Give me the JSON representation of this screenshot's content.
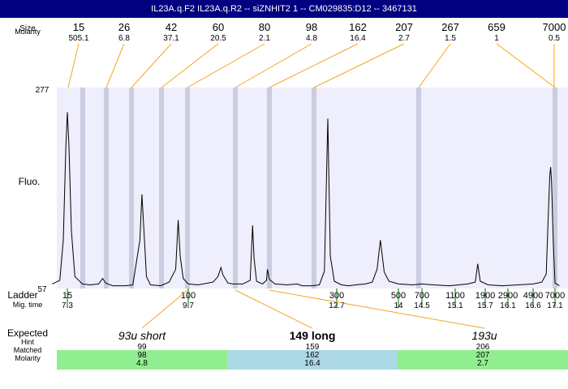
{
  "window": {
    "title": "IL23A.q.F2  IL23A.q.R2 -- siZNHIT2 1 -- CM029835:D12 -- 3467131"
  },
  "labels": {
    "size": "Size",
    "molarity": "Molarity",
    "fluo": "Fluo.",
    "ladder": "Ladder",
    "mig_time": "Mig. time",
    "expected": "Expected",
    "hint": "Hint",
    "matched": "Matched",
    "molarity_bottom": "Molarity"
  },
  "colors": {
    "title_bg": "#000080",
    "plot_bg": "#eeeefc",
    "band": "#cccce0",
    "orange": "#f5a623",
    "green": "#006400",
    "matched_green": "#90ee90",
    "matched_blue": "#add8e6"
  },
  "chart_data": {
    "type": "line",
    "title": "IL23A.q.F2  IL23A.q.R2 -- siZNHIT2 1 -- CM029835:D12 -- 3467131",
    "ylabel": "Fluo.",
    "ylim": [
      57,
      277
    ],
    "y_ticks": [
      "277",
      "57"
    ],
    "top_peaks": [
      {
        "size": "15",
        "molarity": "505.1",
        "mig_time": 7.3
      },
      {
        "size": "26",
        "molarity": "6.8",
        "mig_time": 8.0
      },
      {
        "size": "42",
        "molarity": "37.1",
        "mig_time": 8.9
      },
      {
        "size": "60",
        "molarity": "20.5",
        "mig_time": 9.2
      },
      {
        "size": "80",
        "molarity": "2.1",
        "mig_time": 9.7
      },
      {
        "size": "98",
        "molarity": "4.8",
        "mig_time": 10.0
      },
      {
        "size": "162",
        "molarity": "16.4",
        "mig_time": 11.3
      },
      {
        "size": "207",
        "molarity": "2.7",
        "mig_time": 11.9
      },
      {
        "size": "267",
        "molarity": "1.5",
        "mig_time": 12.8
      },
      {
        "size": "659",
        "molarity": "1",
        "mig_time": 14.5
      },
      {
        "size": "7000",
        "molarity": "0.5",
        "mig_time": 17.1
      }
    ],
    "ladder": [
      {
        "size": "15",
        "mig_time": "7.3"
      },
      {
        "size": "100",
        "mig_time": "9.7"
      },
      {
        "size": "300",
        "mig_time": "12.7"
      },
      {
        "size": "500",
        "mig_time": "14"
      },
      {
        "size": "700",
        "mig_time": "14.5"
      },
      {
        "size": "1100",
        "mig_time": "15.1"
      },
      {
        "size": "1900",
        "mig_time": "15.7"
      },
      {
        "size": "2900",
        "mig_time": "16.1"
      },
      {
        "size": "4900",
        "mig_time": "16.6"
      },
      {
        "size": "7000",
        "mig_time": "17.1"
      }
    ],
    "trace": [
      [
        7.0,
        62
      ],
      [
        7.15,
        66
      ],
      [
        7.22,
        110
      ],
      [
        7.27,
        210
      ],
      [
        7.3,
        250
      ],
      [
        7.33,
        215
      ],
      [
        7.38,
        120
      ],
      [
        7.45,
        70
      ],
      [
        7.6,
        62
      ],
      [
        7.75,
        61
      ],
      [
        7.92,
        62
      ],
      [
        8.0,
        68
      ],
      [
        8.06,
        63
      ],
      [
        8.2,
        60
      ],
      [
        8.45,
        60
      ],
      [
        8.6,
        61
      ],
      [
        8.74,
        110
      ],
      [
        8.78,
        160
      ],
      [
        8.82,
        120
      ],
      [
        8.87,
        70
      ],
      [
        8.95,
        61
      ],
      [
        9.15,
        60
      ],
      [
        9.32,
        64
      ],
      [
        9.45,
        78
      ],
      [
        9.5,
        132
      ],
      [
        9.54,
        92
      ],
      [
        9.6,
        68
      ],
      [
        9.7,
        62
      ],
      [
        9.9,
        61
      ],
      [
        10.1,
        63
      ],
      [
        10.2,
        64
      ],
      [
        10.3,
        70
      ],
      [
        10.36,
        80
      ],
      [
        10.4,
        72
      ],
      [
        10.5,
        63
      ],
      [
        10.6,
        62
      ],
      [
        10.8,
        62
      ],
      [
        10.95,
        66
      ],
      [
        11.0,
        126
      ],
      [
        11.03,
        90
      ],
      [
        11.08,
        65
      ],
      [
        11.2,
        62
      ],
      [
        11.28,
        66
      ],
      [
        11.3,
        78
      ],
      [
        11.34,
        67
      ],
      [
        11.45,
        62
      ],
      [
        11.7,
        61
      ],
      [
        11.9,
        62
      ],
      [
        12.0,
        60
      ],
      [
        12.2,
        60
      ],
      [
        12.35,
        61
      ],
      [
        12.45,
        76
      ],
      [
        12.52,
        243
      ],
      [
        12.57,
        92
      ],
      [
        12.65,
        65
      ],
      [
        12.8,
        61
      ],
      [
        12.95,
        60
      ],
      [
        13.1,
        61
      ],
      [
        13.3,
        62
      ],
      [
        13.45,
        64
      ],
      [
        13.55,
        78
      ],
      [
        13.62,
        110
      ],
      [
        13.7,
        75
      ],
      [
        13.8,
        65
      ],
      [
        14.0,
        62
      ],
      [
        14.3,
        61
      ],
      [
        14.5,
        62
      ],
      [
        14.7,
        61
      ],
      [
        15.0,
        60
      ],
      [
        15.35,
        62
      ],
      [
        15.5,
        64
      ],
      [
        15.55,
        84
      ],
      [
        15.6,
        65
      ],
      [
        15.75,
        61
      ],
      [
        16.0,
        60
      ],
      [
        16.3,
        61
      ],
      [
        16.6,
        62
      ],
      [
        16.8,
        64
      ],
      [
        16.9,
        73
      ],
      [
        16.94,
        130
      ],
      [
        16.98,
        180
      ],
      [
        17.0,
        190
      ],
      [
        17.02,
        175
      ],
      [
        17.06,
        110
      ],
      [
        17.1,
        63
      ],
      [
        17.2,
        60
      ]
    ]
  },
  "expected": [
    {
      "label": "93u short",
      "bold": false,
      "italic": true,
      "hint": "99",
      "matched": "98",
      "molarity": "4.8",
      "mig_time": 10.0
    },
    {
      "label": "149 long",
      "bold": true,
      "italic": false,
      "hint": "159",
      "matched": "162",
      "molarity": "16.4",
      "mig_time": 11.3
    },
    {
      "label": "193u",
      "bold": false,
      "italic": true,
      "hint": "206",
      "matched": "207",
      "molarity": "2.7",
      "mig_time": 11.9
    }
  ]
}
